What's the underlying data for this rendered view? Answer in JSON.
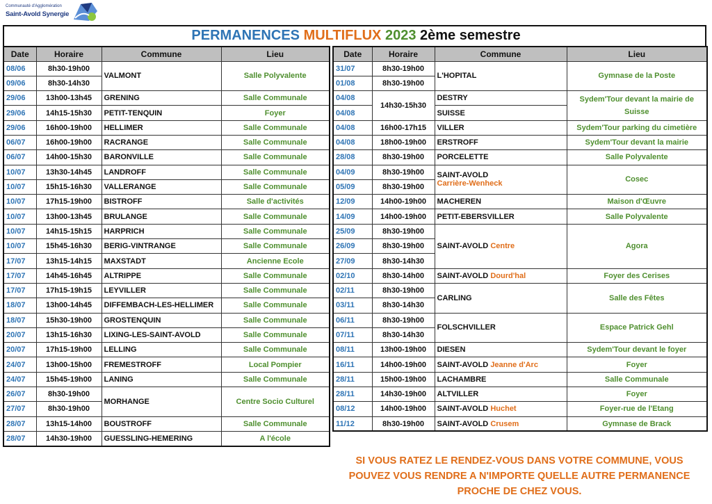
{
  "logo": {
    "line1": "Communauté d'Agglomération",
    "line2": "Saint-Avold Synergie"
  },
  "title": {
    "part1": "PERMANENCES",
    "part2": "MULTIFLUX",
    "part3": "2023",
    "part4": "2ème semestre"
  },
  "headers": {
    "date": "Date",
    "horaire": "Horaire",
    "commune": "Commune",
    "lieu": "Lieu"
  },
  "left_rows": [
    {
      "date": "08/06",
      "time": "8h30-19h00",
      "commune": "VALMONT",
      "lieu": "Salle Polyvalente",
      "span": 2
    },
    {
      "date": "09/06",
      "time": "8h30-14h30"
    },
    {
      "date": "29/06",
      "time": "13h00-13h45",
      "commune": "GRENING",
      "lieu": "Salle Communale"
    },
    {
      "date": "29/06",
      "time": "14h15-15h30",
      "commune": "PETIT-TENQUIN",
      "lieu": "Foyer"
    },
    {
      "date": "29/06",
      "time": "16h00-19h00",
      "commune": "HELLIMER",
      "lieu": "Salle Communale"
    },
    {
      "date": "06/07",
      "time": "16h00-19h00",
      "commune": "RACRANGE",
      "lieu": "Salle Communale"
    },
    {
      "date": "06/07",
      "time": "14h00-15h30",
      "commune": "BARONVILLE",
      "lieu": "Salle Communale"
    },
    {
      "date": "10/07",
      "time": "13h30-14h45",
      "commune": "LANDROFF",
      "lieu": "Salle Communale"
    },
    {
      "date": "10/07",
      "time": "15h15-16h30",
      "commune": "VALLERANGE",
      "lieu": "Salle Communale"
    },
    {
      "date": "10/07",
      "time": "17h15-19h00",
      "commune": "BISTROFF",
      "lieu": "Salle d'activités"
    },
    {
      "date": "10/07",
      "time": "13h00-13h45",
      "commune": "BRULANGE",
      "lieu": "Salle Communale"
    },
    {
      "date": "10/07",
      "time": "14h15-15h15",
      "commune": "HARPRICH",
      "lieu": "Salle Communale"
    },
    {
      "date": "10/07",
      "time": "15h45-16h30",
      "commune": "BERIG-VINTRANGE",
      "lieu": "Salle Communale"
    },
    {
      "date": "17/07",
      "time": "13h15-14h15",
      "commune": "MAXSTADT",
      "lieu": "Ancienne Ecole"
    },
    {
      "date": "17/07",
      "time": "14h45-16h45",
      "commune": "ALTRIPPE",
      "lieu": "Salle Communale"
    },
    {
      "date": "17/07",
      "time": "17h15-19h15",
      "commune": "LEYVILLER",
      "lieu": "Salle Communale"
    },
    {
      "date": "18/07",
      "time": "13h00-14h45",
      "commune": "DIFFEMBACH-LES-HELLIMER",
      "lieu": "Salle Communale"
    },
    {
      "date": "18/07",
      "time": "15h30-19h00",
      "commune": "GROSTENQUIN",
      "lieu": "Salle Communale"
    },
    {
      "date": "20/07",
      "time": "13h15-16h30",
      "commune": "LIXING-LES-SAINT-AVOLD",
      "lieu": "Salle Communale"
    },
    {
      "date": "20/07",
      "time": "17h15-19h00",
      "commune": "LELLING",
      "lieu": "Salle Communale"
    },
    {
      "date": "24/07",
      "time": "13h00-15h00",
      "commune": "FREMESTROFF",
      "lieu": "Local Pompier"
    },
    {
      "date": "24/07",
      "time": "15h45-19h00",
      "commune": "LANING",
      "lieu": "Salle Communale"
    },
    {
      "date": "26/07",
      "time": "8h30-19h00",
      "commune": "MORHANGE",
      "lieu": "Centre Socio Culturel",
      "span": 2
    },
    {
      "date": "27/07",
      "time": "8h30-19h00"
    },
    {
      "date": "28/07",
      "time": "13h15-14h00",
      "commune": "BOUSTROFF",
      "lieu": "Salle Communale"
    },
    {
      "date": "28/07",
      "time": "14h30-19h00",
      "commune": "GUESSLING-HEMERING",
      "lieu": "A l'école"
    }
  ],
  "right_rows": [
    {
      "date": "31/07",
      "time": "8h30-19h00",
      "tspan": 1,
      "commune": "L'HOPITAL",
      "cspan": 2,
      "lieu": "Gymnase de la Poste",
      "lspan": 2
    },
    {
      "date": "01/08",
      "time": "8h30-19h00",
      "tspan": 1
    },
    {
      "date": "04/08",
      "time": "14h30-15h30",
      "tspan": 2,
      "commune": "DESTRY",
      "cspan": 1,
      "lieu": "Sydem'Tour  devant la mairie de Suisse",
      "lspan": 2
    },
    {
      "date": "04/08",
      "commune": "SUISSE",
      "cspan": 1
    },
    {
      "date": "04/08",
      "time": "16h00-17h15",
      "tspan": 1,
      "commune": "VILLER",
      "cspan": 1,
      "lieu": "Sydem'Tour parking du cimetière",
      "lspan": 1
    },
    {
      "date": "04/08",
      "time": "18h00-19h00",
      "tspan": 1,
      "commune": "ERSTROFF",
      "cspan": 1,
      "lieu": "Sydem'Tour devant la mairie",
      "lspan": 1
    },
    {
      "date": "28/08",
      "time": "8h30-19h00",
      "tspan": 1,
      "commune": "PORCELETTE",
      "cspan": 1,
      "lieu": "Salle Polyvalente",
      "lspan": 1
    },
    {
      "date": "04/09",
      "time": "8h30-19h00",
      "tspan": 1,
      "commune": "SAINT-AVOLD",
      "commune_sub": "Carrière-Wenheck",
      "cspan": 2,
      "lieu": "Cosec",
      "lspan": 2
    },
    {
      "date": "05/09",
      "time": "8h30-19h00",
      "tspan": 1
    },
    {
      "date": "12/09",
      "time": "14h00-19h00",
      "tspan": 1,
      "commune": "MACHEREN",
      "cspan": 1,
      "lieu": "Maison d'Œuvre",
      "lspan": 1
    },
    {
      "date": "14/09",
      "time": "14h00-19h00",
      "tspan": 1,
      "commune": "PETIT-EBERSVILLER",
      "cspan": 1,
      "lieu": "Salle Polyvalente",
      "lspan": 1
    },
    {
      "date": "25/09",
      "time": "8h30-19h00",
      "tspan": 1,
      "commune": "SAINT-AVOLD",
      "commune_inline": "Centre",
      "cspan": 3,
      "lieu": "Agora",
      "lspan": 3
    },
    {
      "date": "26/09",
      "time": "8h30-19h00",
      "tspan": 1
    },
    {
      "date": "27/09",
      "time": "8h30-14h30",
      "tspan": 1
    },
    {
      "date": "02/10",
      "time": "8h30-14h00",
      "tspan": 1,
      "commune": "SAINT-AVOLD",
      "commune_inline": "Dourd'hal",
      "cspan": 1,
      "lieu": "Foyer des Cerises",
      "lspan": 1
    },
    {
      "date": "02/11",
      "time": "8h30-19h00",
      "tspan": 1,
      "commune": "CARLING",
      "cspan": 2,
      "lieu": "Salle des Fêtes",
      "lspan": 2
    },
    {
      "date": "03/11",
      "time": "8h30-14h30",
      "tspan": 1
    },
    {
      "date": "06/11",
      "time": "8h30-19h00",
      "tspan": 1,
      "commune": "FOLSCHVILLER",
      "cspan": 2,
      "lieu": "Espace Patrick Gehl",
      "lspan": 2
    },
    {
      "date": "07/11",
      "time": "8h30-14h30",
      "tspan": 1
    },
    {
      "date": "08/11",
      "time": "13h00-19h00",
      "tspan": 1,
      "commune": "DIESEN",
      "cspan": 1,
      "lieu": "Sydem'Tour devant le foyer",
      "lspan": 1
    },
    {
      "date": "16/11",
      "time": "14h00-19h00",
      "tspan": 1,
      "commune": "SAINT-AVOLD",
      "commune_inline": "Jeanne d'Arc",
      "cspan": 1,
      "lieu": "Foyer",
      "lspan": 1
    },
    {
      "date": "28/11",
      "time": "15h00-19h00",
      "tspan": 1,
      "commune": "LACHAMBRE",
      "cspan": 1,
      "lieu": "Salle Communale",
      "lspan": 1
    },
    {
      "date": "28/11",
      "time": "14h30-19h00",
      "tspan": 1,
      "commune": "ALTVILLER",
      "cspan": 1,
      "lieu": "Foyer",
      "lspan": 1
    },
    {
      "date": "08/12",
      "time": "14h00-19h00",
      "tspan": 1,
      "commune": "SAINT-AVOLD",
      "commune_inline": "Huchet",
      "cspan": 1,
      "lieu": "Foyer-rue de l'Etang",
      "lspan": 1
    },
    {
      "date": "11/12",
      "time": "8h30-19h00",
      "tspan": 1,
      "commune": "SAINT-AVOLD",
      "commune_inline": "Crusem",
      "cspan": 1,
      "lieu": "Gymnase de Brack",
      "lspan": 1
    }
  ],
  "notice": {
    "line1": "SI VOUS RATEZ LE RENDEZ-VOUS DANS VOTRE COMMUNE, VOUS",
    "line2": "POUVEZ VOUS RENDRE A N'IMPORTE QUELLE AUTRE PERMANENCE",
    "line3": "PROCHE DE CHEZ VOUS."
  },
  "colors": {
    "blue": "#2e74b5",
    "orange": "#e06e1a",
    "green": "#4f8f2f",
    "header_bg": "#bfbfbf"
  }
}
